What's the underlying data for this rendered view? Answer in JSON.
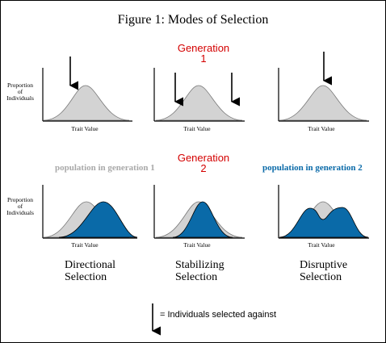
{
  "figure_title": "Figure 1:  Modes of Selection",
  "generation_1": {
    "line1": "Generation",
    "line2": "1"
  },
  "generation_2": {
    "line1": "Generation",
    "line2": "2"
  },
  "y_axis_label": {
    "line1": "Proportion",
    "line2": "of",
    "line3": "Individuals"
  },
  "x_axis_label": "Trait Value",
  "population_labels": {
    "gen1": "population in generation 1",
    "gen2": "population in generation 2"
  },
  "modes": [
    {
      "line1": "Directional",
      "line2": "Selection"
    },
    {
      "line1": "Stabilizing",
      "line2": "Selection"
    },
    {
      "line1": "Disruptive",
      "line2": "Selection"
    }
  ],
  "legend_text": "= Individuals selected against",
  "colors": {
    "generation_label": "#d40000",
    "gen1_fill": "#d3d3d3",
    "gen2_fill": "#0a6aa8",
    "gen1_text": "#a9a9a9",
    "gen2_text": "#0a6aa8"
  }
}
